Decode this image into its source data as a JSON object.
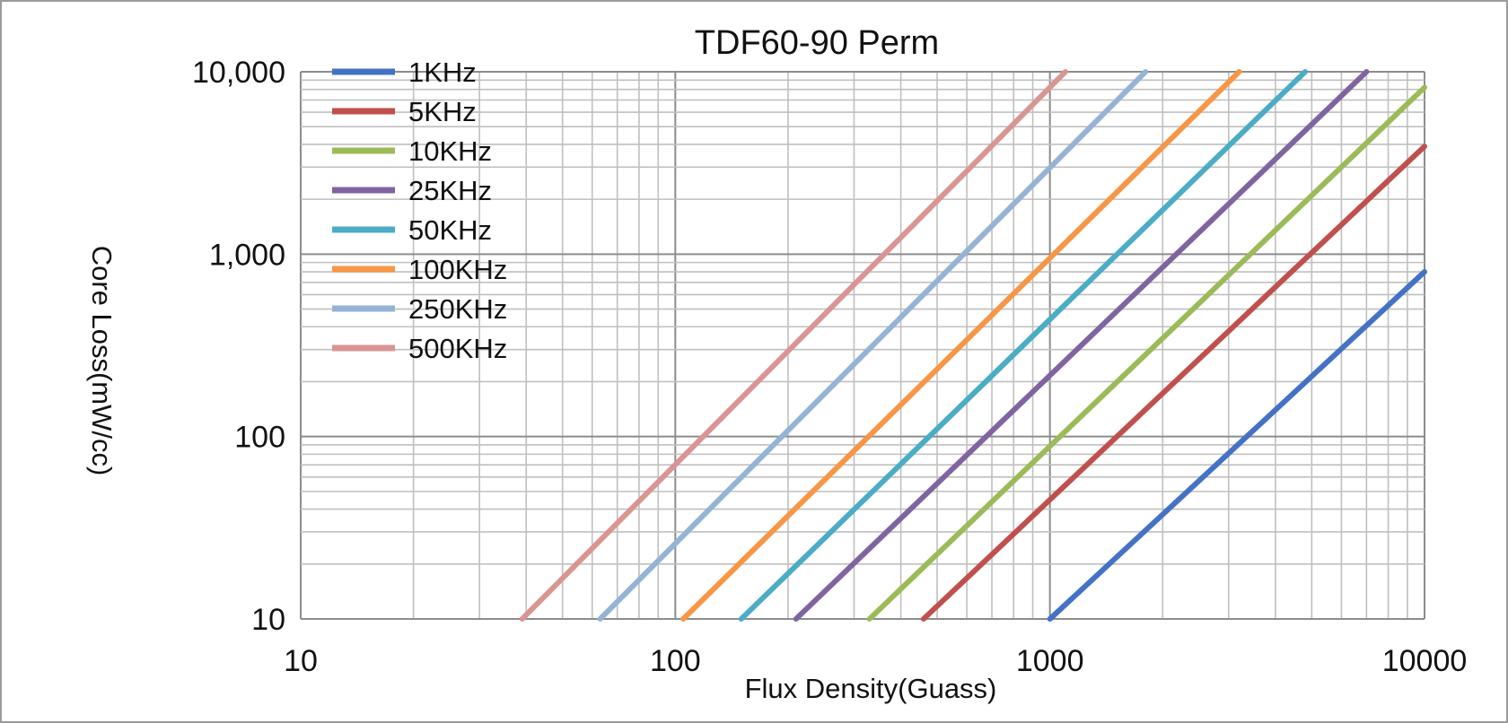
{
  "chart_data": {
    "type": "line",
    "title": "TDF60-90 Perm",
    "xlabel": "Flux Density(Guass)",
    "ylabel": "Core Loss(mW/cc)",
    "x_scale": "log",
    "y_scale": "log",
    "xlim": [
      10,
      10000
    ],
    "ylim": [
      10,
      10000
    ],
    "x_ticks": [
      {
        "value": 10,
        "label": "10"
      },
      {
        "value": 100,
        "label": "100"
      },
      {
        "value": 1000,
        "label": "1000"
      },
      {
        "value": 10000,
        "label": "10000"
      }
    ],
    "y_ticks": [
      {
        "value": 10,
        "label": "10"
      },
      {
        "value": 100,
        "label": "100"
      },
      {
        "value": 1000,
        "label": "1,000"
      },
      {
        "value": 10000,
        "label": "10,000"
      }
    ],
    "grid": "on (major and minor)",
    "legend_position": "top-left",
    "series": [
      {
        "name": "1KHz",
        "color": "#4472c4",
        "x": [
          1000,
          10000
        ],
        "y": [
          10,
          800
        ]
      },
      {
        "name": "5KHz",
        "color": "#c0504d",
        "x": [
          460,
          10000
        ],
        "y": [
          10,
          3900
        ]
      },
      {
        "name": "10KHz",
        "color": "#9bbb59",
        "x": [
          330,
          10000
        ],
        "y": [
          10,
          8200
        ]
      },
      {
        "name": "25KHz",
        "color": "#8064a2",
        "x": [
          210,
          7000
        ],
        "y": [
          10,
          10000
        ]
      },
      {
        "name": "50KHz",
        "color": "#4bacc6",
        "x": [
          150,
          4800
        ],
        "y": [
          10,
          10000
        ]
      },
      {
        "name": "100KHz",
        "color": "#f79646",
        "x": [
          105,
          3200
        ],
        "y": [
          10,
          10000
        ]
      },
      {
        "name": "250KHz",
        "color": "#95b3d7",
        "x": [
          63,
          1800
        ],
        "y": [
          10,
          10000
        ]
      },
      {
        "name": "500KHz",
        "color": "#d99594",
        "x": [
          39,
          1100
        ],
        "y": [
          10,
          10000
        ]
      }
    ]
  }
}
